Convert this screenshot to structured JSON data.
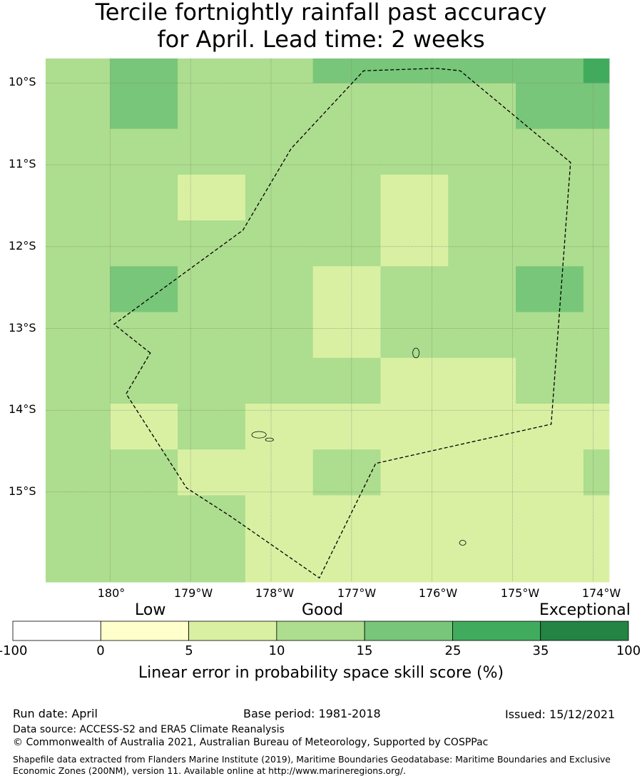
{
  "title_line1": "Tercile fortnightly rainfall past accuracy",
  "title_line2": "for April. Lead time: 2 weeks",
  "map": {
    "lat_labels": [
      "10°S",
      "11°S",
      "12°S",
      "13°S",
      "14°S",
      "15°S"
    ],
    "lon_labels": [
      "180°",
      "179°W",
      "178°W",
      "177°W",
      "176°W",
      "175°W",
      "174°W"
    ],
    "lon_range": [
      179.2,
      186.2
    ],
    "lat_range": [
      -16.1,
      -9.7
    ],
    "skill_grid": [
      [
        10,
        15,
        10,
        10,
        15,
        15,
        15,
        15,
        25
      ],
      [
        10,
        15,
        10,
        10,
        10,
        10,
        10,
        15,
        15
      ],
      [
        10,
        10,
        10,
        10,
        10,
        10,
        10,
        10,
        10
      ],
      [
        10,
        10,
        5,
        10,
        10,
        5,
        10,
        10,
        10
      ],
      [
        10,
        10,
        10,
        10,
        10,
        5,
        10,
        10,
        10
      ],
      [
        10,
        15,
        10,
        10,
        5,
        10,
        10,
        15,
        10
      ],
      [
        10,
        10,
        10,
        10,
        5,
        10,
        10,
        10,
        10
      ],
      [
        10,
        10,
        10,
        10,
        10,
        5,
        5,
        10,
        10
      ],
      [
        10,
        5,
        10,
        5,
        5,
        5,
        5,
        5,
        5
      ],
      [
        10,
        10,
        5,
        5,
        10,
        5,
        5,
        5,
        10
      ],
      [
        10,
        10,
        10,
        5,
        5,
        5,
        5,
        5,
        5
      ],
      [
        10,
        10,
        10,
        5,
        5,
        5,
        5,
        5,
        5
      ]
    ],
    "boundary": [
      [
        180.5,
        -13.3
      ],
      [
        180.05,
        -12.95
      ],
      [
        181.65,
        -11.8
      ],
      [
        182.25,
        -10.8
      ],
      [
        183.15,
        -9.85
      ],
      [
        184.05,
        -9.82
      ],
      [
        184.35,
        -9.85
      ],
      [
        185.72,
        -10.97
      ],
      [
        185.48,
        -14.17
      ],
      [
        183.3,
        -14.65
      ],
      [
        182.6,
        -16.05
      ],
      [
        181.5,
        -15.3
      ],
      [
        180.95,
        -14.95
      ],
      [
        180.2,
        -13.8
      ]
    ],
    "islands": [
      {
        "cx": 183.8,
        "cy": -13.3,
        "rx": 0.04,
        "ry": 0.06
      },
      {
        "cx": 181.85,
        "cy": -14.3,
        "rx": 0.09,
        "ry": 0.04
      },
      {
        "cx": 181.98,
        "cy": -14.36,
        "rx": 0.05,
        "ry": 0.02
      },
      {
        "cx": 184.38,
        "cy": -15.62,
        "rx": 0.04,
        "ry": 0.03
      }
    ]
  },
  "colorbar": {
    "category_labels": [
      "Low",
      "Good",
      "Exceptional"
    ],
    "boundaries": [
      "-100",
      "0",
      "5",
      "10",
      "15",
      "25",
      "35",
      "100"
    ],
    "colors": [
      "#ffffff",
      "#ffffcc",
      "#d9f0a3",
      "#addd8e",
      "#78c679",
      "#41ab5d",
      "#238443"
    ],
    "title": "Linear error in probability space skill score (%)"
  },
  "footer": {
    "run_date": "Run date: April",
    "base_period": "Base period: 1981-2018",
    "issued": "Issued: 15/12/2021",
    "data_source": "Data source: ACCESS-S2 and ERA5 Climate Reanalysis",
    "copyright": "© Commonwealth of Australia 2021, Australian Bureau of Meteorology, Supported by COSPPac",
    "shapefile": "Shapefile data extracted from Flanders Marine Institute (2019), Maritime Boundaries Geodatabase: Maritime Boundaries and Exclusive Economic Zones (200NM), version 11. Available online at http://www.marineregions.org/."
  }
}
